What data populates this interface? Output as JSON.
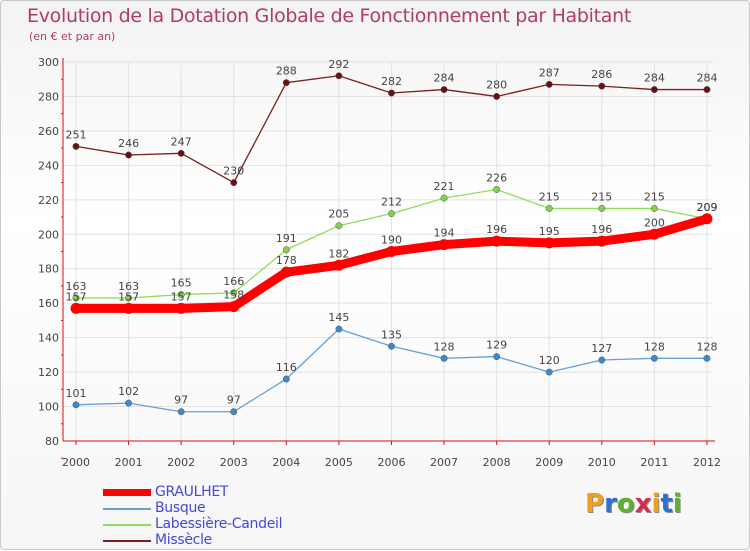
{
  "header": {
    "title": "Evolution de la Dotation Globale de Fonctionnement par Habitant",
    "subtitle": "(en € et par an)"
  },
  "colors": {
    "title": "#b03a6a",
    "axis": "#d01010",
    "grid": "#e2e2e2",
    "label": "#444444",
    "legend_text": "#4747d6"
  },
  "chart_data": {
    "type": "line",
    "title": "Evolution de la Dotation Globale de Fonctionnement par Habitant",
    "subtitle": "(en € et par an)",
    "xlabel": "",
    "ylabel": "",
    "ylim": [
      80,
      300
    ],
    "yticks": [
      "80",
      "100",
      "120",
      "140",
      "160",
      "180",
      "200",
      "220",
      "240",
      "260",
      "280",
      "300"
    ],
    "categories": [
      "2000",
      "2001",
      "2002",
      "2003",
      "2004",
      "2005",
      "2006",
      "2007",
      "2008",
      "2009",
      "2010",
      "2011",
      "2012"
    ],
    "grid": true,
    "legend_position": "bottom-left",
    "series": [
      {
        "name": "Missècle",
        "color": "#7a1f1f",
        "marker": "#6a1010",
        "emphasis": false,
        "values": [
          251,
          246,
          247,
          230,
          288,
          292,
          282,
          284,
          280,
          287,
          286,
          284,
          284
        ]
      },
      {
        "name": "Labessière-Candeil",
        "color": "#8fdc5a",
        "marker": "#7fd24a",
        "emphasis": false,
        "values": [
          163,
          163,
          165,
          166,
          191,
          205,
          212,
          221,
          226,
          215,
          215,
          215,
          209
        ]
      },
      {
        "name": "Busque",
        "color": "#6aa0d0",
        "marker": "#3e88cc",
        "emphasis": false,
        "values": [
          101,
          102,
          97,
          97,
          116,
          145,
          135,
          128,
          129,
          120,
          127,
          128,
          128
        ]
      },
      {
        "name": "GRAULHET",
        "color": "#ff0000",
        "marker": "#ff0000",
        "emphasis": true,
        "values": [
          157,
          157,
          157,
          158,
          178,
          182,
          190,
          194,
          196,
          195,
          196,
          200,
          209
        ]
      }
    ]
  },
  "legend": [
    {
      "name": "GRAULHET",
      "color": "#ff0000",
      "thick": true
    },
    {
      "name": "Busque",
      "color": "#6aa0d0",
      "thick": false
    },
    {
      "name": "Labessière-Candeil",
      "color": "#8fdc5a",
      "thick": false
    },
    {
      "name": "Missècle",
      "color": "#7a1f1f",
      "thick": false
    }
  ],
  "logo": {
    "letters": [
      "P",
      "r",
      "o",
      "x",
      "i",
      "t",
      "i"
    ],
    "colors": [
      "#f0a020",
      "#3070d0",
      "#60b030",
      "#d03050",
      "#f0a020",
      "#3070d0",
      "#60b030"
    ]
  }
}
